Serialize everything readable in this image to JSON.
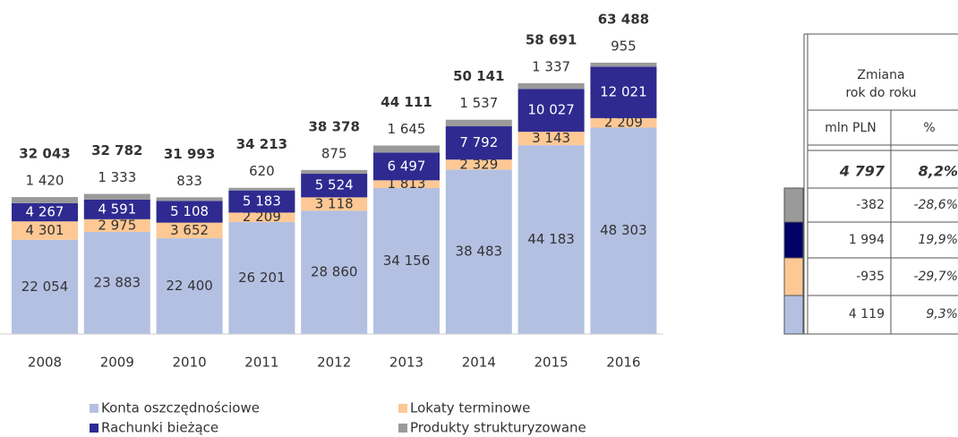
{
  "chart_data": {
    "type": "bar",
    "stacked": true,
    "categories": [
      "2008",
      "2009",
      "2010",
      "2011",
      "2012",
      "2013",
      "2014",
      "2015",
      "2016"
    ],
    "series": [
      {
        "name": "Konta oszczędnościowe",
        "color": "#b3c0e2",
        "values": [
          22054,
          23883,
          22400,
          26201,
          28860,
          34156,
          38483,
          44183,
          48303
        ],
        "value_labels": [
          "22 054",
          "23 883",
          "22 400",
          "26 201",
          "28 860",
          "34 156",
          "38 483",
          "44 183",
          "48 303"
        ]
      },
      {
        "name": "Lokaty terminowe",
        "color": "#fdc894",
        "values": [
          4301,
          2975,
          3652,
          2209,
          3118,
          1813,
          2329,
          3143,
          2209
        ],
        "value_labels": [
          "4 301",
          "2 975",
          "3 652",
          "2 209",
          "3 118",
          "1 813",
          "2 329",
          "3 143",
          "2 209"
        ]
      },
      {
        "name": "Rachunki bieżące",
        "color": "#2e2a90",
        "values": [
          4267,
          4591,
          5108,
          5183,
          5524,
          6497,
          7792,
          10027,
          12021
        ],
        "value_labels": [
          "4 267",
          "4 591",
          "5 108",
          "5 183",
          "5 524",
          "6 497",
          "7 792",
          "10 027",
          "12 021"
        ]
      },
      {
        "name": "Produkty strukturyzowane",
        "color": "#9a9a9a",
        "values": [
          1420,
          1333,
          833,
          620,
          875,
          1645,
          1537,
          1337,
          955
        ],
        "value_labels": [
          "1 420",
          "1 333",
          "833",
          "620",
          "875",
          "1 645",
          "1 537",
          "1 337",
          "955"
        ]
      }
    ],
    "totals": {
      "values": [
        32043,
        32782,
        31993,
        34213,
        38378,
        44111,
        50141,
        58691,
        63488
      ],
      "value_labels": [
        "32 043",
        "32 782",
        "31 993",
        "34 213",
        "38 378",
        "44 111",
        "50 141",
        "58 691",
        "63 488"
      ]
    }
  },
  "table": {
    "header": [
      "Zmiana",
      "rok do roku"
    ],
    "columns": [
      "mln PLN",
      "%"
    ],
    "total": [
      "4 797",
      "8,2%"
    ],
    "rows": [
      {
        "color": "#9a9a9a",
        "cells": [
          "-382",
          "-28,6%"
        ]
      },
      {
        "color": "#000066",
        "cells": [
          "1 994",
          "19,9%"
        ]
      },
      {
        "color": "#fdc894",
        "cells": [
          "-935",
          "-29,7%"
        ]
      },
      {
        "color": "#b3c0e2",
        "cells": [
          "4 119",
          "9,3%"
        ]
      }
    ]
  }
}
